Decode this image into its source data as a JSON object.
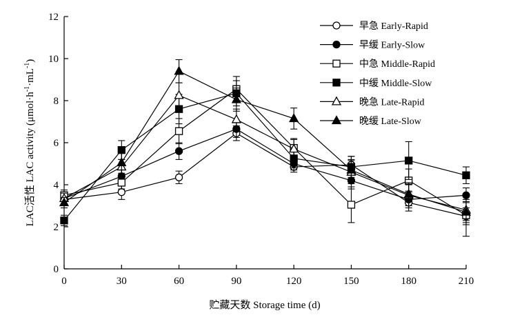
{
  "chart_data": {
    "type": "line",
    "xlabel": "贮藏天数 Storage time (d)",
    "ylabel": "LAC活性 LAC activity (μmol·h",
    "ylabel_sup1": "-1",
    "ylabel_mid": "·mL",
    "ylabel_sup2": "-1",
    "ylabel_end": ")",
    "x": [
      0,
      30,
      60,
      90,
      120,
      150,
      180,
      210
    ],
    "xlim": [
      0,
      210
    ],
    "ylim": [
      0,
      12
    ],
    "xticks": [
      "0",
      "30",
      "60",
      "90",
      "120",
      "150",
      "180",
      "210"
    ],
    "yticks": [
      "0",
      "2",
      "4",
      "6",
      "8",
      "10",
      "12"
    ],
    "grid": false,
    "legend_position": "top-right",
    "series": [
      {
        "name": "早急 Early-Rapid",
        "marker": "circle",
        "filled": false,
        "values": [
          3.3,
          3.65,
          4.35,
          6.45,
          4.85,
          4.95,
          3.15,
          2.5
        ],
        "errors": [
          0.25,
          0.35,
          0.3,
          0.35,
          0.25,
          0.4,
          0.4,
          0.4
        ]
      },
      {
        "name": "早缓 Early-Slow",
        "marker": "circle",
        "filled": true,
        "values": [
          3.35,
          4.4,
          5.6,
          6.65,
          5.0,
          4.2,
          3.3,
          3.5
        ],
        "errors": [
          0.25,
          0.35,
          0.4,
          0.4,
          0.3,
          0.4,
          0.4,
          0.35
        ]
      },
      {
        "name": "中急 Middle-Rapid",
        "marker": "square",
        "filled": false,
        "values": [
          3.5,
          4.1,
          6.55,
          8.55,
          5.75,
          3.05,
          4.2,
          2.55
        ],
        "errors": [
          0.25,
          0.3,
          0.6,
          0.6,
          0.45,
          0.85,
          0.55,
          1.0
        ]
      },
      {
        "name": "中缓 Middle-Slow",
        "marker": "square",
        "filled": true,
        "values": [
          2.3,
          5.65,
          7.6,
          8.35,
          5.25,
          4.85,
          5.15,
          4.45
        ],
        "errors": [
          0.25,
          0.45,
          0.7,
          0.6,
          0.45,
          0.5,
          0.9,
          0.4
        ]
      },
      {
        "name": "晚急 Late-Rapid",
        "marker": "triangle",
        "filled": false,
        "values": [
          3.35,
          4.85,
          8.25,
          7.1,
          5.7,
          4.6,
          3.5,
          2.8
        ],
        "errors": [
          0.25,
          0.35,
          0.6,
          0.5,
          0.45,
          0.55,
          0.5,
          0.5
        ]
      },
      {
        "name": "晚缓 Late-Slow",
        "marker": "triangle",
        "filled": true,
        "values": [
          3.15,
          5.05,
          9.4,
          8.05,
          7.15,
          4.7,
          3.55,
          2.7
        ],
        "errors": [
          0.25,
          0.5,
          0.55,
          0.55,
          0.5,
          0.5,
          0.55,
          0.5
        ]
      }
    ]
  }
}
